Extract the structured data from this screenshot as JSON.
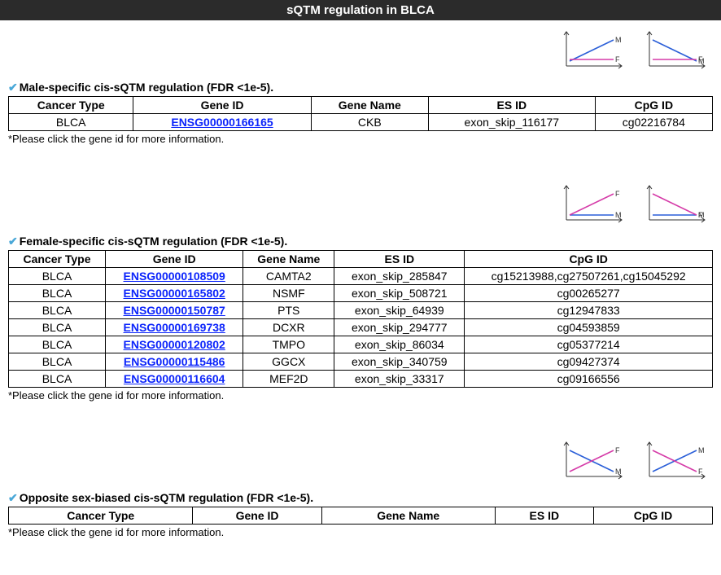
{
  "page_title": "sQTM regulation in BLCA",
  "colors": {
    "header_bg": "#2b2b2b",
    "header_text": "#ffffff",
    "link": "#0b24fb",
    "check": "#4aa8d8",
    "border": "#000000",
    "male_line": "#2b5fd8",
    "female_line": "#d53ba8",
    "axis": "#303030",
    "label": "#303030"
  },
  "footnote": "*Please click the gene id for more information.",
  "columns": [
    "Cancer Type",
    "Gene ID",
    "Gene Name",
    "ES ID",
    "CpG ID"
  ],
  "diagram_labels": {
    "m": "M",
    "f": "F"
  },
  "sections": {
    "male": {
      "title": "Male-specific cis-sQTM regulation (FDR <1e-5).",
      "diagrams": [
        {
          "male_up": true,
          "female_flat": true
        },
        {
          "male_down": true,
          "female_flat": true
        }
      ],
      "rows": [
        {
          "cancer": "BLCA",
          "gene_id": "ENSG00000166165",
          "gene_name": "CKB",
          "es_id": "exon_skip_116177",
          "cpg_id": "cg02216784"
        }
      ]
    },
    "female": {
      "title": "Female-specific cis-sQTM regulation (FDR <1e-5).",
      "diagrams": [
        {
          "female_up": true,
          "male_flat": true
        },
        {
          "female_down": true,
          "male_flat": true
        }
      ],
      "rows": [
        {
          "cancer": "BLCA",
          "gene_id": "ENSG00000108509",
          "gene_name": "CAMTA2",
          "es_id": "exon_skip_285847",
          "cpg_id": "cg15213988,cg27507261,cg15045292"
        },
        {
          "cancer": "BLCA",
          "gene_id": "ENSG00000165802",
          "gene_name": "NSMF",
          "es_id": "exon_skip_508721",
          "cpg_id": "cg00265277"
        },
        {
          "cancer": "BLCA",
          "gene_id": "ENSG00000150787",
          "gene_name": "PTS",
          "es_id": "exon_skip_64939",
          "cpg_id": "cg12947833"
        },
        {
          "cancer": "BLCA",
          "gene_id": "ENSG00000169738",
          "gene_name": "DCXR",
          "es_id": "exon_skip_294777",
          "cpg_id": "cg04593859"
        },
        {
          "cancer": "BLCA",
          "gene_id": "ENSG00000120802",
          "gene_name": "TMPO",
          "es_id": "exon_skip_86034",
          "cpg_id": "cg05377214"
        },
        {
          "cancer": "BLCA",
          "gene_id": "ENSG00000115486",
          "gene_name": "GGCX",
          "es_id": "exon_skip_340759",
          "cpg_id": "cg09427374"
        },
        {
          "cancer": "BLCA",
          "gene_id": "ENSG00000116604",
          "gene_name": "MEF2D",
          "es_id": "exon_skip_33317",
          "cpg_id": "cg09166556"
        }
      ]
    },
    "opposite": {
      "title": "Opposite sex-biased cis-sQTM regulation (FDR <1e-5).",
      "diagrams": [
        {
          "female_up": true,
          "male_down": true
        },
        {
          "male_up": true,
          "female_down": true
        }
      ],
      "rows": []
    }
  }
}
